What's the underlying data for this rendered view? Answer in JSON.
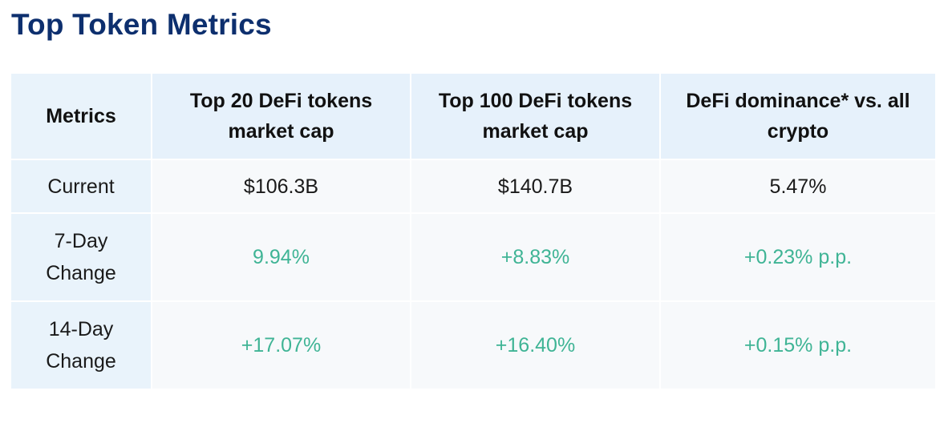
{
  "title": "Top Token Metrics",
  "table": {
    "headers": [
      "Metrics",
      "Top 20 DeFi tokens market cap",
      "Top 100 DeFi tokens market cap",
      "DeFi dominance* vs. all crypto"
    ],
    "rows": [
      {
        "label": "Current",
        "values": [
          "$106.3B",
          "$140.7B",
          "5.47%"
        ]
      },
      {
        "label": "7-Day Change",
        "values": [
          "9.94%",
          "+8.83%",
          "+0.23% p.p."
        ]
      },
      {
        "label": "14-Day Change",
        "values": [
          "+17.07%",
          "+16.40%",
          "+0.15% p.p."
        ]
      }
    ]
  },
  "colors": {
    "title": "#0d2f6e",
    "header_bg": "#e6f1fb",
    "row_bg": "#f7f9fb",
    "positive": "#3fb495"
  }
}
